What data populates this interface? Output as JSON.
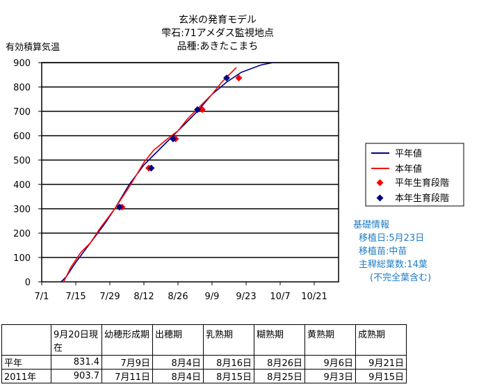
{
  "chart_data": {
    "type": "line",
    "title_lines": [
      "玄米の発育モデル",
      "雫石:71アメダス監視地点",
      "品種:あきたこまち"
    ],
    "ylabel": "有効積算気温",
    "ylim": [
      0,
      900
    ],
    "yticks": [
      0,
      100,
      200,
      300,
      400,
      500,
      600,
      700,
      800,
      900
    ],
    "xtick_labels": [
      "7/1",
      "7/15",
      "7/29",
      "8/12",
      "8/26",
      "9/9",
      "9/23",
      "10/7",
      "10/21"
    ],
    "xtick_days": [
      0,
      14,
      28,
      42,
      56,
      70,
      84,
      98,
      112
    ],
    "xlim": [
      0,
      122
    ],
    "grid": "horizontal",
    "legend_position": "right",
    "series": [
      {
        "name": "平年値",
        "color": "#000080",
        "points": [
          [
            8,
            0
          ],
          [
            10,
            20
          ],
          [
            14,
            80
          ],
          [
            20,
            160
          ],
          [
            26,
            240
          ],
          [
            30,
            300
          ],
          [
            36,
            400
          ],
          [
            42,
            480
          ],
          [
            48,
            540
          ],
          [
            54,
            600
          ],
          [
            59,
            650
          ],
          [
            64,
            700
          ],
          [
            70,
            770
          ],
          [
            76,
            820
          ],
          [
            82,
            860
          ],
          [
            90,
            890
          ],
          [
            95,
            905
          ]
        ]
      },
      {
        "name": "本年値",
        "color": "#ff0000",
        "points": [
          [
            9,
            0
          ],
          [
            12,
            60
          ],
          [
            16,
            120
          ],
          [
            20,
            160
          ],
          [
            24,
            220
          ],
          [
            30,
            300
          ],
          [
            36,
            390
          ],
          [
            42,
            490
          ],
          [
            46,
            540
          ],
          [
            52,
            590
          ],
          [
            56,
            620
          ],
          [
            60,
            670
          ],
          [
            64,
            710
          ],
          [
            70,
            770
          ],
          [
            74,
            820
          ],
          [
            78,
            860
          ],
          [
            80,
            880
          ]
        ]
      }
    ],
    "markers": [
      {
        "name": "平年生育段階",
        "color": "#ff0000",
        "points": [
          [
            33,
            307
          ],
          [
            44,
            467
          ],
          [
            55,
            587
          ],
          [
            66,
            707
          ],
          [
            81,
            837
          ]
        ]
      },
      {
        "name": "本年生育段階",
        "color": "#000080",
        "points": [
          [
            32,
            307
          ],
          [
            45,
            467
          ],
          [
            54,
            587
          ],
          [
            64,
            707
          ],
          [
            76,
            837
          ]
        ]
      }
    ]
  },
  "info": {
    "title": "基礎情報",
    "lines": [
      "移植日:5月23日",
      "移植苗:中苗",
      "主稈総葉数:14葉",
      "(不完全葉含む)"
    ]
  },
  "table": {
    "headers": [
      "",
      "9月20日現在",
      "幼穂形成期",
      "出穂期",
      "乳熟期",
      "糊熟期",
      "黄熟期",
      "成熟期"
    ],
    "rows": [
      [
        "平年",
        "831.4",
        "7月9日",
        "8月4日",
        "8月16日",
        "8月26日",
        "9月6日",
        "9月21日"
      ],
      [
        "2011年",
        "903.7",
        "7月11日",
        "8月4日",
        "8月15日",
        "8月25日",
        "9月3日",
        "9月15日"
      ]
    ]
  }
}
